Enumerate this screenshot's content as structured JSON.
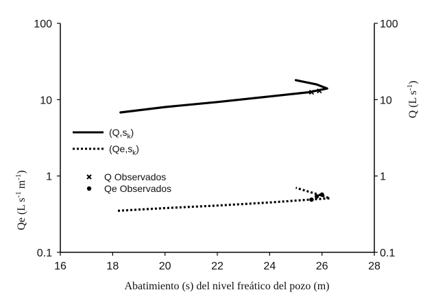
{
  "chart_data": {
    "type": "line",
    "title": "",
    "xlabel": "Abatimiento (s) del nivel freático del pozo (m)",
    "ylabel_left": "Qe (L s-1 m-1)",
    "ylabel_right": "Q (L s-1)",
    "xlim": [
      16,
      28
    ],
    "ylim": [
      0.1,
      100
    ],
    "yscale": "log",
    "grid": false,
    "x_ticks": [
      "16",
      "18",
      "20",
      "22",
      "24",
      "26",
      "28"
    ],
    "y_ticks_left": [
      "0.1",
      "1",
      "10",
      "100"
    ],
    "y_ticks_right": [
      "0.1",
      "1",
      "10",
      "100"
    ],
    "series": [
      {
        "name": "(Q,sk)",
        "style": "solid",
        "color": "#000000",
        "x": [
          18.3,
          20,
          22,
          24,
          25.5,
          26.2,
          25.8,
          25.0
        ],
        "y": [
          6.8,
          8.0,
          9.3,
          11.0,
          12.5,
          14.0,
          15.8,
          18.0
        ]
      },
      {
        "name": "(Qe,sk)",
        "style": "dotted",
        "color": "#000000",
        "x": [
          18.2,
          20,
          22,
          24,
          25.5,
          26.3,
          25.8,
          25.0
        ],
        "y": [
          0.35,
          0.38,
          0.41,
          0.45,
          0.49,
          0.51,
          0.58,
          0.7
        ]
      }
    ],
    "observed": [
      {
        "name": "Q   Observados",
        "marker": "x",
        "x": [
          25.6,
          25.9
        ],
        "y": [
          12.5,
          13.0
        ]
      },
      {
        "name": "Qe Observados",
        "marker": "dot",
        "x": [
          25.6,
          25.8,
          26.0
        ],
        "y": [
          0.49,
          0.54,
          0.57
        ]
      }
    ],
    "legend_labels": {
      "series1_main": "(Q,s",
      "series1_sub": "k",
      "series1_close": ")",
      "series2_main": "(Qe,s",
      "series2_sub": "k",
      "series2_close": ")",
      "obs_q": "Q   Observados",
      "obs_qe": "Qe Observados"
    },
    "axis_title_parts": {
      "left_a": "Qe (L s",
      "left_sup1": "-1",
      "left_b": " m",
      "left_sup2": "-1",
      "left_c": ")",
      "right_a": "Q (L s",
      "right_sup": "-1",
      "right_b": ")"
    },
    "legend_placement": "center-left"
  }
}
